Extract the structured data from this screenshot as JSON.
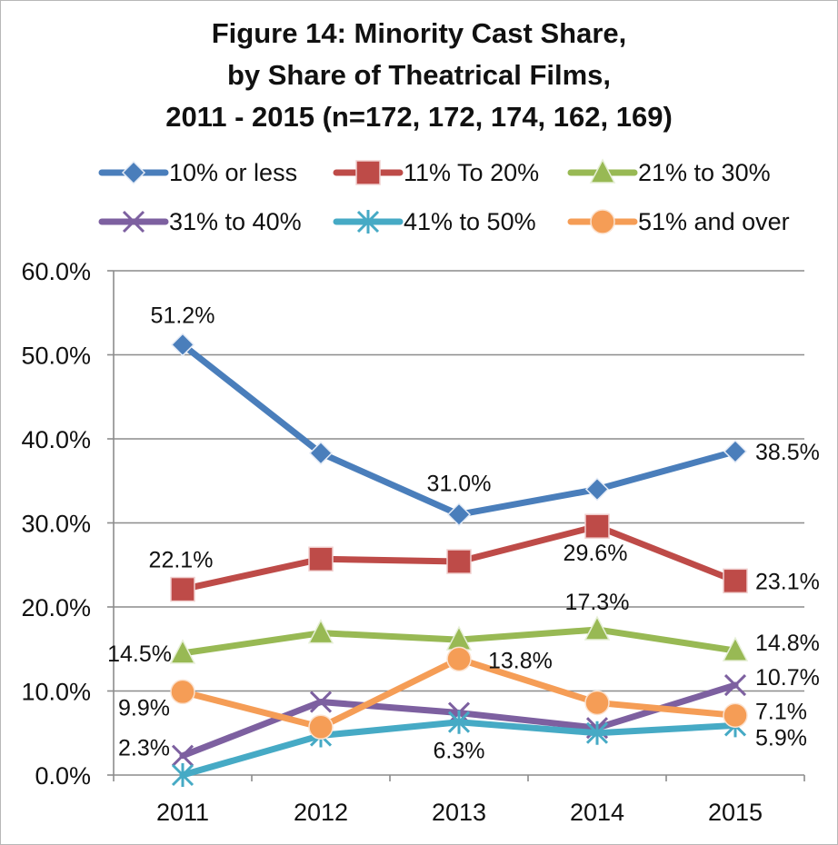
{
  "chart_data": {
    "type": "line",
    "title_lines": [
      "Figure 14:  Minority Cast Share,",
      "by Share of Theatrical Films,",
      "2011 - 2015 (n=172, 172, 174, 162, 169)"
    ],
    "categories": [
      "2011",
      "2012",
      "2013",
      "2014",
      "2015"
    ],
    "ylim": [
      0,
      60
    ],
    "yticks": [
      "0.0%",
      "10.0%",
      "20.0%",
      "30.0%",
      "40.0%",
      "50.0%",
      "60.0%"
    ],
    "legend_placement": "top",
    "grid": true,
    "series": [
      {
        "name": "10% or less",
        "color": "#4a7ebb",
        "marker": "diamond",
        "values": [
          51.2,
          38.3,
          31.0,
          34.0,
          38.5
        ],
        "labels": [
          "51.2%",
          "",
          "31.0%",
          "",
          "38.5%"
        ]
      },
      {
        "name": "11% To 20%",
        "color": "#be4b48",
        "marker": "square",
        "values": [
          22.1,
          25.7,
          25.4,
          29.6,
          23.1
        ],
        "labels": [
          "22.1%",
          "",
          "",
          "29.6%",
          "23.1%"
        ]
      },
      {
        "name": "21% to 30%",
        "color": "#98b954",
        "marker": "triangle",
        "values": [
          14.5,
          16.9,
          16.1,
          17.3,
          14.8
        ],
        "labels": [
          "14.5%",
          "",
          "",
          "17.3%",
          "14.8%"
        ]
      },
      {
        "name": "31% to 40%",
        "color": "#7d60a0",
        "marker": "x",
        "values": [
          2.3,
          8.7,
          7.4,
          5.6,
          10.7
        ],
        "labels": [
          "2.3%",
          "",
          "",
          "",
          "10.7%"
        ]
      },
      {
        "name": "41% to 50%",
        "color": "#46aac5",
        "marker": "star",
        "values": [
          0.0,
          4.7,
          6.3,
          5.0,
          5.9
        ],
        "labels": [
          "",
          "",
          "6.3%",
          "",
          "5.9%"
        ]
      },
      {
        "name": "51% and over",
        "color": "#f59d56",
        "marker": "circle",
        "values": [
          9.9,
          5.7,
          13.8,
          8.6,
          7.1
        ],
        "labels": [
          "9.9%",
          "",
          "13.8%",
          "",
          "7.1%"
        ]
      }
    ]
  }
}
